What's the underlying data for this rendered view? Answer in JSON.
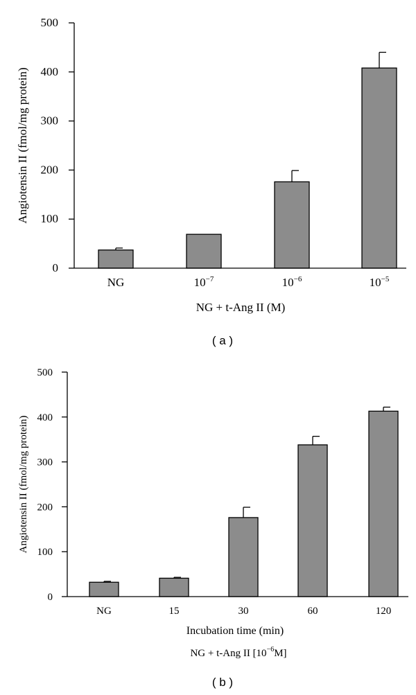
{
  "chart_data": [
    {
      "type": "bar",
      "panel_label": "( a )",
      "ylabel": "Angiotensin II (fmol/mg protein)",
      "xlabel": "NG + t-Ang II (M)",
      "ylim": [
        0,
        500
      ],
      "yticks": [
        "0",
        "100",
        "200",
        "300",
        "400",
        "500"
      ],
      "categories": [
        {
          "base": "NG",
          "exp": ""
        },
        {
          "base": "10",
          "exp": "−7"
        },
        {
          "base": "10",
          "exp": "−6"
        },
        {
          "base": "10",
          "exp": "−5"
        }
      ],
      "values": [
        37,
        69,
        176,
        408
      ],
      "errors": [
        4,
        0,
        23,
        32
      ],
      "grid": false
    },
    {
      "type": "bar",
      "panel_label": "( b )",
      "ylabel": "Angiotensin II (fmol/mg protein)",
      "xlabel": "Incubation time (min)",
      "xlabel2": {
        "pre": "NG + t-Ang II [10",
        "exp": "−6",
        "post": "M]"
      },
      "ylim": [
        0,
        500
      ],
      "yticks": [
        "0",
        "100",
        "200",
        "300",
        "400",
        "500"
      ],
      "categories": [
        {
          "base": "NG",
          "exp": ""
        },
        {
          "base": "15",
          "exp": ""
        },
        {
          "base": "30",
          "exp": ""
        },
        {
          "base": "60",
          "exp": ""
        },
        {
          "base": "120",
          "exp": ""
        }
      ],
      "values": [
        32,
        41,
        176,
        338,
        413
      ],
      "errors": [
        2,
        2,
        23,
        19,
        9
      ],
      "grid": false
    }
  ]
}
